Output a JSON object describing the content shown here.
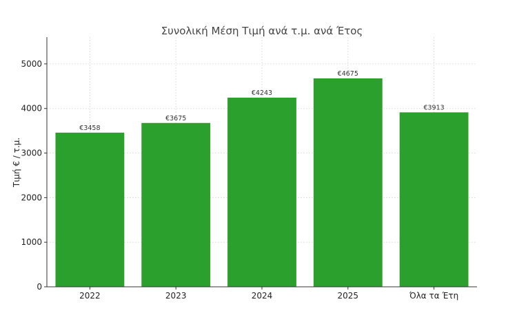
{
  "chart_data": {
    "type": "bar",
    "title": "Συνολική Μέση Τιμή ανά τ.μ. ανά Έτος",
    "xlabel": "",
    "ylabel": "Τιμή € / τ.μ.",
    "categories": [
      "2022",
      "2023",
      "2024",
      "2025",
      "Όλα τα Έτη"
    ],
    "values": [
      3458,
      3675,
      4243,
      4675,
      3913
    ],
    "data_labels": [
      "€3458",
      "€3675",
      "€4243",
      "€4675",
      "€3913"
    ],
    "ylim": [
      0,
      5600
    ],
    "yticks": [
      0,
      1000,
      2000,
      3000,
      4000,
      5000
    ],
    "ytick_labels": [
      "0",
      "1000",
      "2000",
      "3000",
      "4000",
      "5000"
    ],
    "bar_color": "#2ca02c",
    "grid": true,
    "legend": "none"
  }
}
